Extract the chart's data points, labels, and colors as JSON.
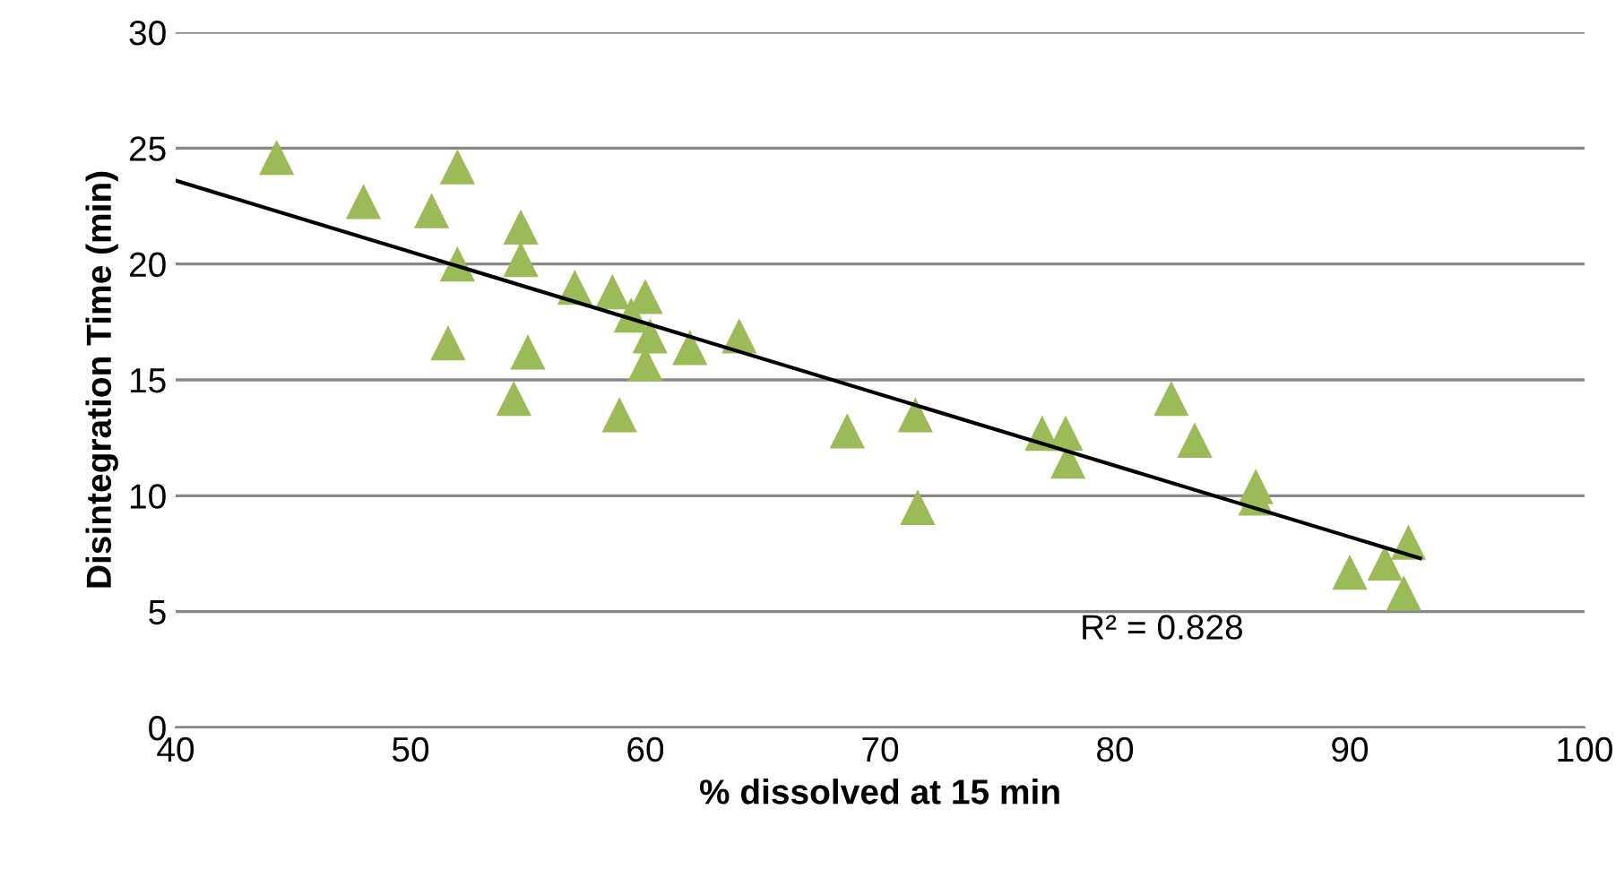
{
  "chart_data": {
    "type": "scatter",
    "xlabel": "% dissolved at 15 min",
    "ylabel": "Disintegration Time (min)",
    "xlim": [
      40,
      100
    ],
    "xticks": [
      40,
      50,
      60,
      70,
      80,
      90,
      100
    ],
    "ylim": [
      0,
      30
    ],
    "yticks": [
      0,
      5,
      10,
      15,
      20,
      25,
      30
    ],
    "grid": "y",
    "series": [
      {
        "marker": "triangle",
        "color": "#9bbb59",
        "x": [
          44.3,
          48.0,
          50.9,
          52.0,
          52.0,
          51.6,
          54.7,
          54.7,
          55.0,
          54.4,
          57.0,
          58.6,
          59.4,
          60.0,
          60.2,
          60.0,
          61.9,
          58.9,
          64.0,
          68.6,
          71.5,
          71.6,
          76.9,
          77.9,
          78.0,
          82.4,
          83.4,
          86.0,
          86.0,
          90.0,
          91.5,
          92.5,
          92.3
        ],
        "values": [
          24.6,
          22.7,
          22.3,
          24.2,
          20.0,
          16.6,
          21.6,
          20.2,
          16.2,
          14.2,
          19.0,
          18.8,
          17.8,
          18.6,
          16.9,
          15.7,
          16.4,
          13.5,
          16.9,
          12.8,
          13.5,
          9.5,
          12.7,
          12.7,
          11.5,
          14.2,
          12.4,
          10.4,
          9.9,
          6.7,
          7.1,
          8.0,
          5.8
        ]
      },
      {
        "type": "line",
        "marker": "none",
        "color": "#000000",
        "x": [
          40,
          93
        ],
        "values": [
          23.6,
          7.3
        ]
      }
    ],
    "annotations": [
      "R² = 0.828"
    ]
  }
}
